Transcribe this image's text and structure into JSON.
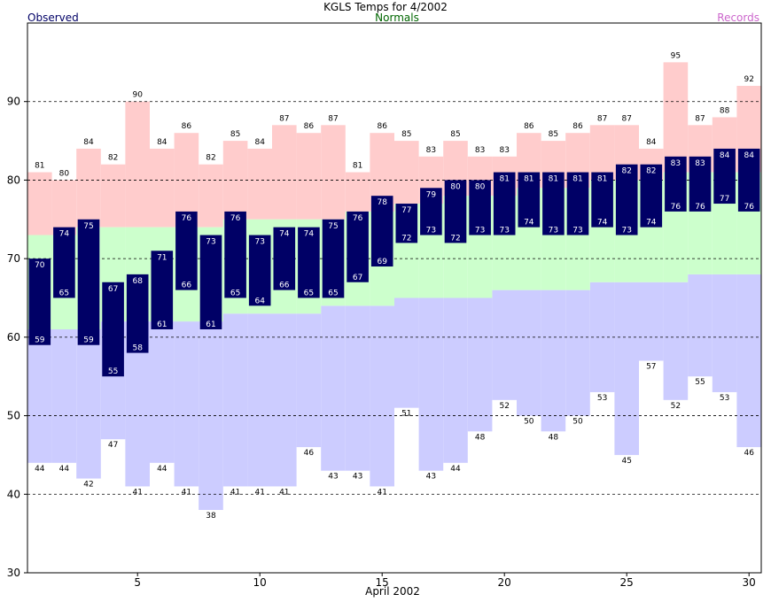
{
  "chart_data": {
    "type": "bar",
    "title": "KGLS Temps for 4/2002",
    "xlabel": "April 2002",
    "ylabel": "",
    "legend": [
      "Observed",
      "Normals",
      "Records"
    ],
    "legend_placement": "top",
    "ylim": [
      30,
      100
    ],
    "xlim": [
      0.5,
      30.5
    ],
    "x_ticks": [
      5,
      10,
      15,
      20,
      25,
      30
    ],
    "y_ticks": [
      30,
      40,
      50,
      60,
      70,
      80,
      90
    ],
    "grid": "horizontal dashed",
    "colors": {
      "observed": "#000066",
      "normals": "#ccffcc",
      "records_high": "#ffcccc",
      "records_low": "#ccccff",
      "normals_legend": "#006600",
      "records_legend": "#cc66cc",
      "observed_legend": "#000066"
    },
    "days": [
      1,
      2,
      3,
      4,
      5,
      6,
      7,
      8,
      9,
      10,
      11,
      12,
      13,
      14,
      15,
      16,
      17,
      18,
      19,
      20,
      21,
      22,
      23,
      24,
      25,
      26,
      27,
      28,
      29,
      30
    ],
    "series": [
      {
        "name": "Observed High",
        "values": [
          70,
          74,
          75,
          67,
          68,
          71,
          76,
          73,
          76,
          73,
          74,
          74,
          75,
          76,
          78,
          77,
          79,
          80,
          80,
          81,
          81,
          81,
          81,
          81,
          82,
          82,
          83,
          83,
          84,
          84
        ]
      },
      {
        "name": "Observed Low",
        "values": [
          59,
          65,
          59,
          55,
          58,
          61,
          66,
          61,
          65,
          64,
          66,
          65,
          65,
          67,
          69,
          72,
          73,
          72,
          73,
          73,
          74,
          73,
          73,
          74,
          73,
          74,
          76,
          76,
          77,
          76
        ]
      },
      {
        "name": "Record High",
        "values": [
          81,
          80,
          84,
          82,
          90,
          84,
          86,
          82,
          85,
          84,
          87,
          86,
          87,
          81,
          86,
          85,
          83,
          85,
          83,
          83,
          86,
          85,
          86,
          87,
          87,
          84,
          95,
          87,
          88,
          92
        ]
      },
      {
        "name": "Record Low",
        "values": [
          44,
          44,
          42,
          47,
          41,
          44,
          41,
          38,
          41,
          41,
          41,
          46,
          43,
          43,
          41,
          51,
          43,
          44,
          48,
          52,
          50,
          48,
          50,
          53,
          45,
          57,
          52,
          55,
          53,
          46
        ]
      },
      {
        "name": "Normal High",
        "values": [
          73,
          73,
          74,
          74,
          74,
          74,
          74,
          74,
          75,
          75,
          75,
          75,
          75,
          76,
          76,
          77,
          77,
          78,
          78,
          78,
          79,
          79,
          79,
          80,
          80,
          80,
          81,
          81,
          81,
          81
        ]
      },
      {
        "name": "Normal Low",
        "values": [
          61,
          61,
          61,
          62,
          62,
          62,
          62,
          62,
          63,
          63,
          63,
          63,
          64,
          64,
          64,
          65,
          65,
          65,
          65,
          66,
          66,
          66,
          66,
          67,
          67,
          67,
          67,
          68,
          68,
          68
        ]
      }
    ]
  }
}
